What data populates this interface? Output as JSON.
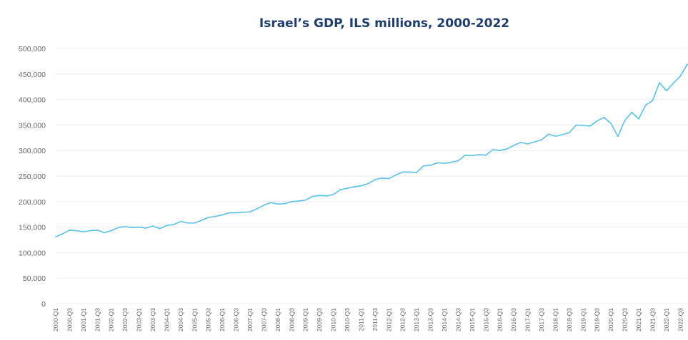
{
  "chart_data": {
    "type": "line",
    "title": "Israel’s GDP, ILS millions, 2000-2022",
    "xlabel": "",
    "ylabel": "",
    "ylim": [
      0,
      500000
    ],
    "yticks": [
      "0",
      "50,000",
      "100,000",
      "150,000",
      "200,000",
      "250,000",
      "300,000",
      "350,000",
      "400,000",
      "450,000",
      "500,000"
    ],
    "ytick_values": [
      0,
      50000,
      100000,
      150000,
      200000,
      250000,
      300000,
      350000,
      400000,
      450000,
      500000
    ],
    "xtick_labels": [
      "2000-Q1",
      "2000-Q3",
      "2001-Q1",
      "2001-Q3",
      "2002-Q1",
      "2002-Q3",
      "2003-Q1",
      "2003-Q3",
      "2004-Q1",
      "2004-Q3",
      "2005-Q1",
      "2005-Q3",
      "2006-Q1",
      "2006-Q3",
      "2007-Q1",
      "2007-Q3",
      "2008-Q1",
      "2008-Q3",
      "2009-Q1",
      "2009-Q3",
      "2010-Q1",
      "2010-Q3",
      "2011-Q1",
      "2011-Q3",
      "2012-Q1",
      "2012-Q3",
      "2013-Q1",
      "2013-Q3",
      "2014-Q1",
      "2014-Q3",
      "2015-Q1",
      "2015-Q3",
      "2016-Q1",
      "2016-Q3",
      "2017-Q1",
      "2017-Q3",
      "2018-Q1",
      "2018-Q3",
      "2019-Q1",
      "2019-Q3",
      "2020-Q1",
      "2020-Q3",
      "2021-Q1",
      "2021-Q3",
      "2022-Q1",
      "2022-Q3"
    ],
    "grid": true,
    "legend": "none",
    "series": [
      {
        "color": "#5bc0e8",
        "x": [
          "2000-Q1",
          "2000-Q2",
          "2000-Q3",
          "2000-Q4",
          "2001-Q1",
          "2001-Q2",
          "2001-Q3",
          "2001-Q4",
          "2002-Q1",
          "2002-Q2",
          "2002-Q3",
          "2002-Q4",
          "2003-Q1",
          "2003-Q2",
          "2003-Q3",
          "2003-Q4",
          "2004-Q1",
          "2004-Q2",
          "2004-Q3",
          "2004-Q4",
          "2005-Q1",
          "2005-Q2",
          "2005-Q3",
          "2005-Q4",
          "2006-Q1",
          "2006-Q2",
          "2006-Q3",
          "2006-Q4",
          "2007-Q1",
          "2007-Q2",
          "2007-Q3",
          "2007-Q4",
          "2008-Q1",
          "2008-Q2",
          "2008-Q3",
          "2008-Q4",
          "2009-Q1",
          "2009-Q2",
          "2009-Q3",
          "2009-Q4",
          "2010-Q1",
          "2010-Q2",
          "2010-Q3",
          "2010-Q4",
          "2011-Q1",
          "2011-Q2",
          "2011-Q3",
          "2011-Q4",
          "2012-Q1",
          "2012-Q2",
          "2012-Q3",
          "2012-Q4",
          "2013-Q1",
          "2013-Q2",
          "2013-Q3",
          "2013-Q4",
          "2014-Q1",
          "2014-Q2",
          "2014-Q3",
          "2014-Q4",
          "2015-Q1",
          "2015-Q2",
          "2015-Q3",
          "2015-Q4",
          "2016-Q1",
          "2016-Q2",
          "2016-Q3",
          "2016-Q4",
          "2017-Q1",
          "2017-Q2",
          "2017-Q3",
          "2017-Q4",
          "2018-Q1",
          "2018-Q2",
          "2018-Q3",
          "2018-Q4",
          "2019-Q1",
          "2019-Q2",
          "2019-Q3",
          "2019-Q4",
          "2020-Q1",
          "2020-Q2",
          "2020-Q3",
          "2020-Q4",
          "2021-Q1",
          "2021-Q2",
          "2021-Q3",
          "2021-Q4",
          "2022-Q1",
          "2022-Q2",
          "2022-Q3",
          "2022-Q4"
        ],
        "values": [
          131000,
          137000,
          144000,
          143000,
          141000,
          143000,
          144000,
          139000,
          143000,
          149000,
          151000,
          149000,
          150000,
          148000,
          152000,
          147000,
          153000,
          155000,
          161000,
          158000,
          158000,
          163000,
          169000,
          171000,
          174000,
          178000,
          178000,
          179000,
          180000,
          186000,
          193000,
          198000,
          195000,
          196000,
          200000,
          201000,
          203000,
          210000,
          212000,
          211000,
          214000,
          223000,
          226000,
          229000,
          231000,
          235000,
          243000,
          246000,
          245000,
          252000,
          258000,
          258000,
          257000,
          270000,
          271000,
          276000,
          275000,
          277000,
          280000,
          291000,
          290000,
          292000,
          291000,
          302000,
          300000,
          303000,
          310000,
          316000,
          313000,
          317000,
          321000,
          332000,
          328000,
          331000,
          335000,
          350000,
          349000,
          348000,
          358000,
          365000,
          353000,
          328000,
          359000,
          375000,
          362000,
          389000,
          398000,
          433000,
          417000,
          432000,
          446000,
          469000
        ]
      }
    ]
  }
}
